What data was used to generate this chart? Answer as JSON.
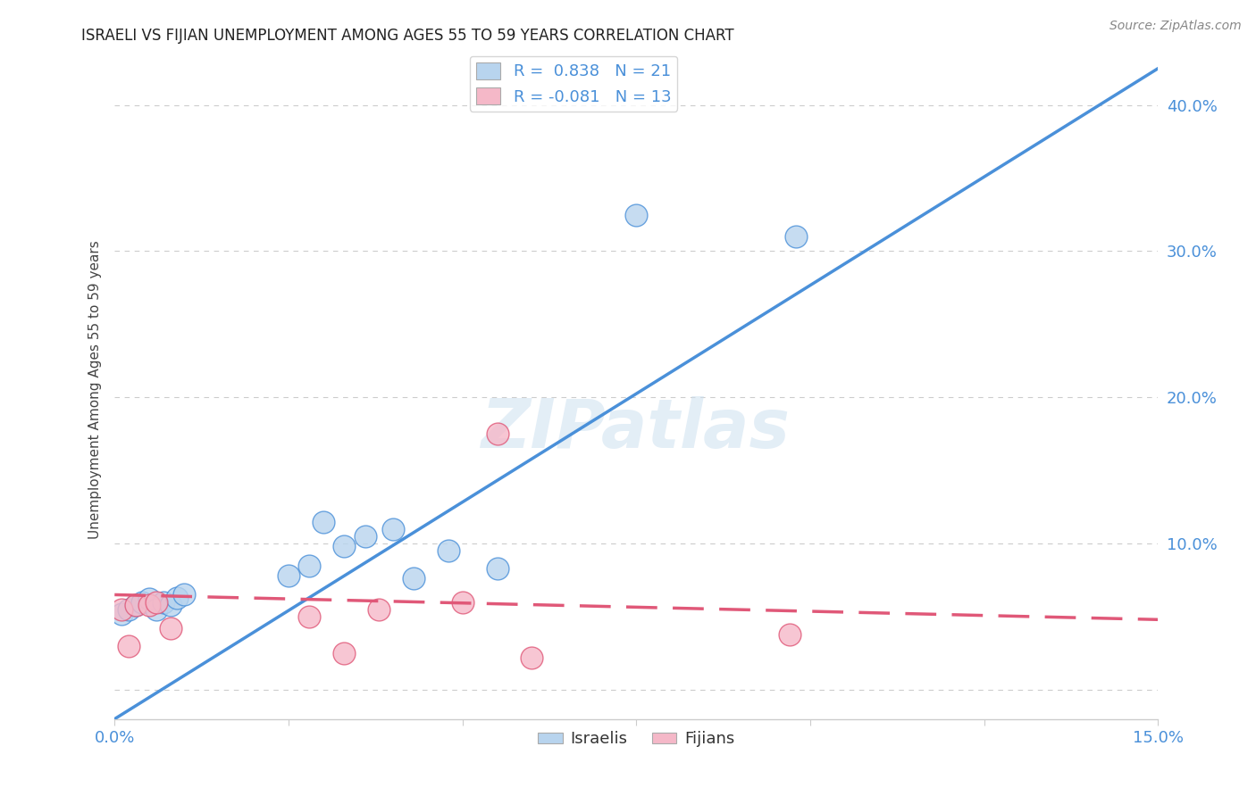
{
  "title": "ISRAELI VS FIJIAN UNEMPLOYMENT AMONG AGES 55 TO 59 YEARS CORRELATION CHART",
  "source": "Source: ZipAtlas.com",
  "ylabel": "Unemployment Among Ages 55 to 59 years",
  "x_min": 0.0,
  "x_max": 0.15,
  "y_min": -0.02,
  "y_max": 0.43,
  "y_ticks": [
    0.0,
    0.1,
    0.2,
    0.3,
    0.4
  ],
  "x_tick_positions": [
    0.0,
    0.025,
    0.05,
    0.075,
    0.1,
    0.125,
    0.15
  ],
  "x_tick_labels": [
    "0.0%",
    "",
    "",
    "",
    "",
    "",
    "15.0%"
  ],
  "israeli_R": 0.838,
  "israeli_N": 21,
  "fijian_R": -0.081,
  "fijian_N": 13,
  "israeli_color": "#b8d4ee",
  "fijian_color": "#f5b8c8",
  "israeli_line_color": "#4a90d9",
  "fijian_line_color": "#e05878",
  "watermark": "ZIPatlas",
  "israeli_x": [
    0.001,
    0.002,
    0.003,
    0.004,
    0.005,
    0.006,
    0.007,
    0.008,
    0.009,
    0.01,
    0.025,
    0.028,
    0.03,
    0.033,
    0.036,
    0.04,
    0.043,
    0.048,
    0.055,
    0.075,
    0.098
  ],
  "israeli_y": [
    0.052,
    0.055,
    0.058,
    0.06,
    0.062,
    0.055,
    0.06,
    0.058,
    0.063,
    0.065,
    0.078,
    0.085,
    0.115,
    0.098,
    0.105,
    0.11,
    0.076,
    0.095,
    0.083,
    0.325,
    0.31
  ],
  "fijian_x": [
    0.001,
    0.002,
    0.003,
    0.005,
    0.006,
    0.008,
    0.028,
    0.033,
    0.038,
    0.05,
    0.055,
    0.06,
    0.097
  ],
  "fijian_y": [
    0.055,
    0.03,
    0.058,
    0.058,
    0.06,
    0.042,
    0.05,
    0.025,
    0.055,
    0.06,
    0.175,
    0.022,
    0.038
  ],
  "israeli_line_x": [
    0.0,
    0.15
  ],
  "israeli_line_y": [
    -0.02,
    0.425
  ],
  "fijian_line_x": [
    0.0,
    0.15
  ],
  "fijian_line_y": [
    0.065,
    0.048
  ],
  "background_color": "#ffffff",
  "grid_color": "#cccccc"
}
